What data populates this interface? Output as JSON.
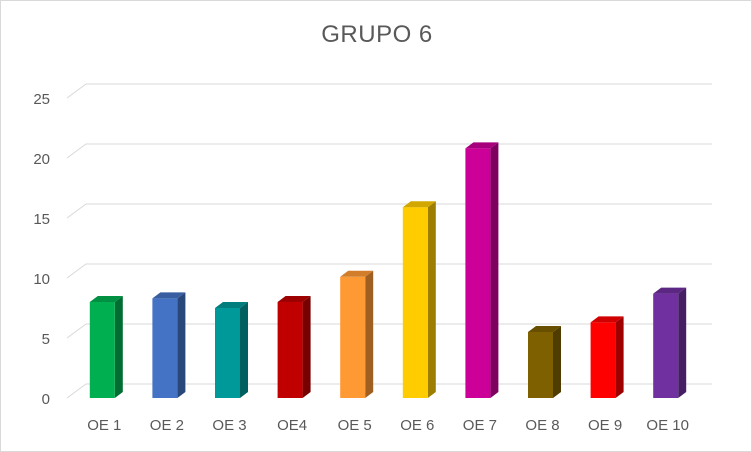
{
  "chart_data": {
    "type": "bar",
    "title": "GRUPO 6",
    "xlabel": "",
    "ylabel": "",
    "categories": [
      "OE 1",
      "OE 2",
      "OE 3",
      "OE4",
      "OE 5",
      "OE 6",
      "OE 7",
      "OE 8",
      "OE 9",
      "OE 10"
    ],
    "values": [
      8,
      8.3,
      7.5,
      8,
      10.1,
      15.9,
      20.8,
      5.5,
      6.3,
      8.7
    ],
    "colors": [
      "#00b050",
      "#4472c4",
      "#009999",
      "#c00000",
      "#ff9933",
      "#ffcc00",
      "#cc0099",
      "#7f6000",
      "#ff0000",
      "#7030a0"
    ],
    "ylim": [
      0,
      25
    ],
    "yticks": [
      0,
      5,
      10,
      15,
      20,
      25
    ],
    "grid": true,
    "legend": "none",
    "style": "3d-column"
  }
}
